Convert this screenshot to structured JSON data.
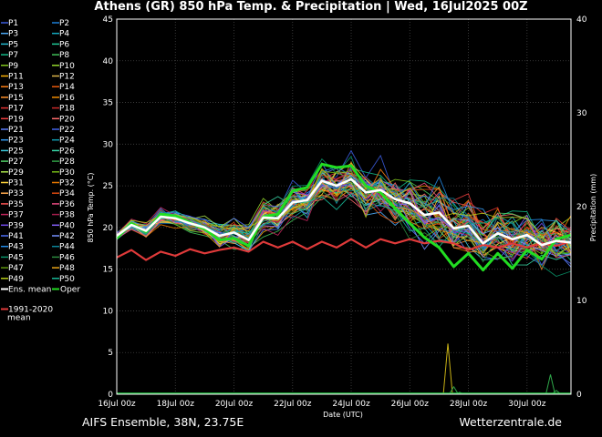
{
  "chart_data": {
    "type": "line",
    "title": "Athens  (GR)  850 hPa Temp. & Precipitation | Wed, 16Jul2025 00Z",
    "xlabel": "Date (UTC)",
    "ylabel": "850 hPa Temp. (°C)",
    "y2label": "Precipitation (mm)",
    "ylim": [
      0,
      45
    ],
    "y2lim": [
      0,
      40
    ],
    "yticks": [
      "0",
      "5",
      "10",
      "15",
      "20",
      "25",
      "30",
      "35",
      "40",
      "45"
    ],
    "y2ticks": [
      "0",
      "10",
      "20",
      "30",
      "40"
    ],
    "xlim": [
      0,
      15.5
    ],
    "xticks": [
      {
        "x": 0,
        "label": "16Jul 00z"
      },
      {
        "x": 2,
        "label": "18Jul 00z"
      },
      {
        "x": 4,
        "label": "20Jul 00z"
      },
      {
        "x": 6,
        "label": "22Jul 00z"
      },
      {
        "x": 8,
        "label": "24Jul 00z"
      },
      {
        "x": 10,
        "label": "26Jul 00z"
      },
      {
        "x": 12,
        "label": "28Jul 00z"
      },
      {
        "x": 14,
        "label": "30Jul 00z"
      }
    ],
    "grid": true,
    "legend_placement": "left",
    "legend": {
      "members": [
        "P1",
        "P2",
        "P3",
        "P4",
        "P5",
        "P6",
        "P7",
        "P8",
        "P9",
        "P10",
        "P11",
        "P12",
        "P13",
        "P14",
        "P15",
        "P16",
        "P17",
        "P18",
        "P19",
        "P20",
        "P21",
        "P22",
        "P23",
        "P24",
        "P25",
        "P26",
        "P27",
        "P28",
        "P29",
        "P30",
        "P31",
        "P32",
        "P33",
        "P34",
        "P35",
        "P36",
        "P37",
        "P38",
        "P39",
        "P40",
        "P41",
        "P42",
        "P43",
        "P44",
        "P45",
        "P46",
        "P47",
        "P48",
        "P49",
        "P50"
      ],
      "member_colors": [
        "#3b5bdb",
        "#1c7ed6",
        "#4dabf7",
        "#15aabf",
        "#22b8cf",
        "#20c997",
        "#12b886",
        "#40c057",
        "#82c91e",
        "#94d82d",
        "#fab005",
        "#d9b34a",
        "#fd7e14",
        "#e8590c",
        "#ff922b",
        "#f08c00",
        "#e03131",
        "#c92a2a",
        "#f03e3e",
        "#ff6b6b",
        "#5c7cfa",
        "#4263eb",
        "#339af0",
        "#1098ad",
        "#3bc9db",
        "#38d9a9",
        "#51cf66",
        "#2f9e44",
        "#a9e34b",
        "#74b816",
        "#ffd43b",
        "#e67700",
        "#ffa94d",
        "#d9480f",
        "#fa5252",
        "#e64980",
        "#c2255c",
        "#a61e4d",
        "#7048e8",
        "#845ef7",
        "#4c6ef5",
        "#748ffc",
        "#228be6",
        "#0c8599",
        "#099268",
        "#2b8a3e",
        "#5c940d",
        "#e8a317",
        "#b5cc18",
        "#17b897"
      ],
      "extra": [
        {
          "label": "Ens. mean",
          "color": "#ffffff"
        },
        {
          "label": "Oper",
          "color": "#22dd22"
        },
        {
          "label_lines": [
            "1991-2020",
            "mean"
          ],
          "color": "#e03a3a"
        }
      ]
    },
    "series": [
      {
        "name": "Ens. mean",
        "color": "#ffffff",
        "x": [
          0,
          0.5,
          1,
          1.5,
          2,
          2.5,
          3,
          3.5,
          4,
          4.5,
          5,
          5.5,
          6,
          6.5,
          7,
          7.5,
          8,
          8.5,
          9,
          9.5,
          10,
          10.5,
          11,
          11.5,
          12,
          12.5,
          13,
          13.5,
          14,
          14.5,
          15,
          15.5
        ],
        "values": [
          19,
          20.3,
          19.6,
          21.3,
          21.1,
          20.5,
          20,
          19,
          19.4,
          18.5,
          21.2,
          21.1,
          23,
          23.3,
          25.6,
          25,
          25.8,
          24.2,
          24.5,
          23.4,
          22.9,
          21.5,
          21.8,
          19.9,
          20.2,
          18.1,
          19.3,
          18.6,
          19.1,
          17.9,
          18.4,
          18.2
        ]
      },
      {
        "name": "Oper",
        "color": "#22dd22",
        "x": [
          0,
          0.5,
          1,
          1.5,
          2,
          2.5,
          3,
          3.5,
          4,
          4.5,
          5,
          5.5,
          6,
          6.5,
          7,
          7.5,
          8,
          8.5,
          9,
          9.5,
          10,
          10.5,
          11,
          11.5,
          12,
          12.5,
          13,
          13.5,
          14,
          14.5,
          15,
          15.5
        ],
        "values": [
          18.7,
          20.5,
          19.5,
          21.6,
          21.4,
          20.6,
          19.8,
          18.5,
          18.7,
          17.8,
          21.3,
          21.6,
          24.4,
          24.8,
          27.6,
          27.2,
          27.4,
          25,
          24.2,
          22.3,
          20.5,
          18.8,
          17.6,
          15.3,
          16.9,
          14.9,
          16.9,
          15.1,
          17.3,
          16.2,
          18.6,
          19.1
        ]
      },
      {
        "name": "1991-2020 mean",
        "color": "#e03a3a",
        "x": [
          0,
          0.5,
          1,
          1.5,
          2,
          2.5,
          3,
          3.5,
          4,
          4.5,
          5,
          5.5,
          6,
          6.5,
          7,
          7.5,
          8,
          8.5,
          9,
          9.5,
          10,
          10.5,
          11,
          11.5,
          12,
          12.5,
          13,
          13.5,
          14,
          14.5,
          15,
          15.5
        ],
        "values": [
          16.4,
          17.3,
          16.1,
          17.1,
          16.6,
          17.4,
          16.9,
          17.3,
          17.6,
          17.1,
          18.3,
          17.6,
          18.3,
          17.4,
          18.3,
          17.6,
          18.6,
          17.6,
          18.6,
          18.1,
          18.6,
          18.1,
          18.4,
          18.1,
          17.3,
          17.9,
          17.6,
          18.1,
          17.6,
          18.1,
          17.8,
          18.3
        ]
      }
    ],
    "precipitation": {
      "axis": "y2",
      "x": [
        11.3,
        11.5,
        11.7,
        14.8,
        15
      ],
      "values": [
        5.4,
        0.8,
        0.2,
        2.1,
        0.4
      ]
    }
  },
  "footer": {
    "model": "AIFS Ensemble, 38N, 23.75E",
    "site": "Wetterzentrale.de"
  }
}
